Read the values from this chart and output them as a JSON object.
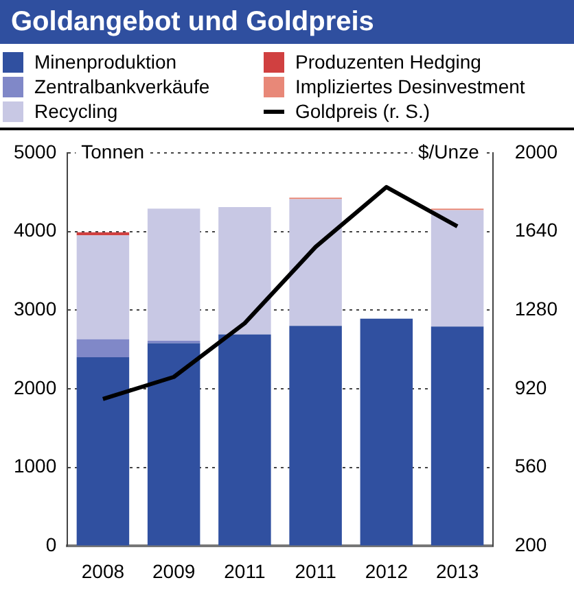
{
  "chart_data": {
    "type": "bar",
    "title": "Goldangebot und Goldpreis",
    "ylabel": "Tonnen",
    "y2label": "$/Unze",
    "categories": [
      "2008",
      "2009",
      "2011",
      "2011",
      "2012",
      "2013"
    ],
    "stacked": true,
    "legend": "top",
    "grid": "y",
    "ylim": [
      0,
      5000
    ],
    "yticks": [
      0,
      1000,
      2000,
      3000,
      4000,
      5000
    ],
    "y2lim": [
      200,
      2000
    ],
    "y2ticks": [
      200,
      560,
      920,
      1280,
      1640,
      2000
    ],
    "series": [
      {
        "name": "Minenproduktion",
        "color": "#3050a0",
        "values": [
          2400,
          2580,
          2690,
          2800,
          2890,
          2790
        ]
      },
      {
        "name": "Zentralbankverkäufe",
        "color": "#8088c8",
        "values": [
          230,
          30,
          null,
          null,
          null,
          null
        ]
      },
      {
        "name": "Recycling",
        "color": "#c8c8e4",
        "values": [
          1320,
          1680,
          1620,
          1610,
          null,
          1480
        ]
      },
      {
        "name": "Produzenten Hedging",
        "color": "#d04040",
        "values": [
          40,
          null,
          null,
          null,
          null,
          null
        ]
      },
      {
        "name": "Impliziertes Desinvestment",
        "color": "#e88878",
        "values": [
          null,
          null,
          null,
          20,
          null,
          20
        ]
      },
      {
        "name": "Goldpreis (r. S.)",
        "type": "line",
        "axis": "y2",
        "color": "#000000",
        "values": [
          873,
          974,
          1220,
          1569,
          1843,
          1663
        ]
      }
    ]
  }
}
